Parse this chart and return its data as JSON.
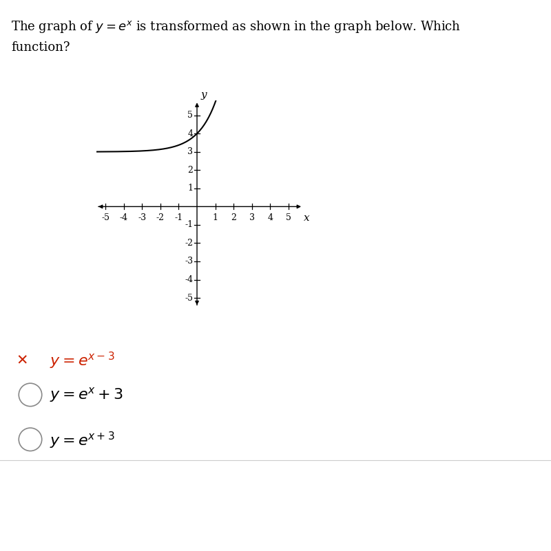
{
  "xlim": [
    -5.5,
    5.8
  ],
  "ylim": [
    -5.5,
    5.8
  ],
  "xticks": [
    -5,
    -4,
    -3,
    -2,
    -1,
    1,
    2,
    3,
    4,
    5
  ],
  "yticks": [
    -5,
    -4,
    -3,
    -2,
    -1,
    1,
    2,
    3,
    4,
    5
  ],
  "curve_color": "#000000",
  "axis_color": "#000000",
  "bg_color": "#ffffff",
  "font_color": "#000000",
  "tick_fontsize": 9,
  "axis_label_fontsize": 11,
  "answer_fontsize": 16,
  "title_fontsize": 13,
  "bottom_bar_color": "#2a2a2a",
  "answer_red_color": "#cc2200",
  "circle_color": "#888888"
}
